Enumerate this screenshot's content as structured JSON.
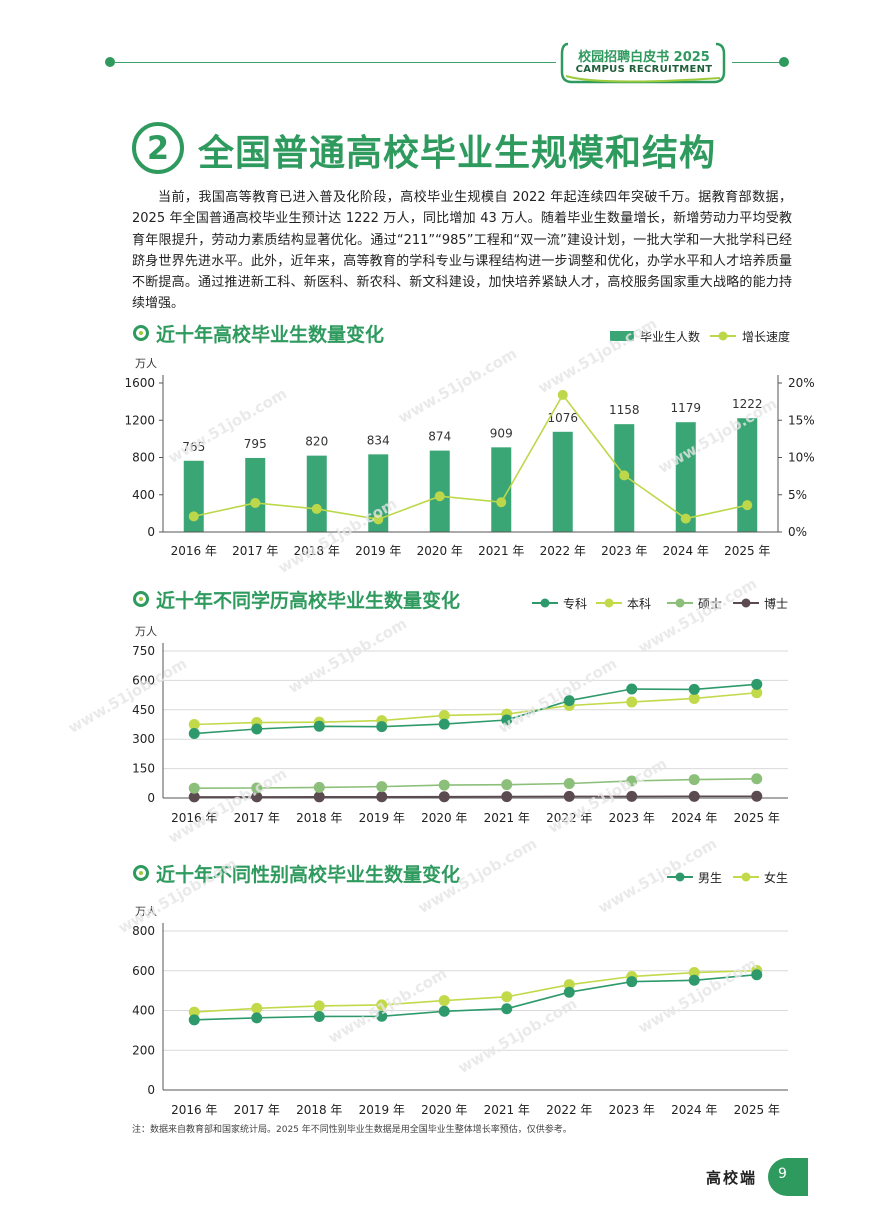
{
  "header": {
    "badge_title": "校园招聘白皮书 2025",
    "badge_subtitle": "CAMPUS RECRUITMENT"
  },
  "section": {
    "number": "2",
    "title": "全国普通高校毕业生规模和结构",
    "paragraph": "当前，我国高等教育已进入普及化阶段，高校毕业生规模自 2022 年起连续四年突破千万。据教育部数据，2025 年全国普通高校毕业生预计达 1222 万人，同比增加 43 万人。随着毕业生数量增长，新增劳动力平均受教育年限提升，劳动力素质结构显著优化。通过“211”“985”工程和“双一流”建设计划，一批大学和一大批学科已经跻身世界先进水平。此外，近年来，高等教育的学科专业与课程结构进一步调整和优化，办学水平和人才培养质量不断提高。通过推进新工科、新医科、新农科、新文科建设，加快培养紧缺人才，高校服务国家重大战略的能力持续增强。"
  },
  "charts": {
    "c1_title": "近十年高校毕业生数量变化",
    "c2_title": "近十年不同学历高校毕业生数量变化",
    "c3_title": "近十年不同性别高校毕业生数量变化"
  },
  "chart_data": [
    {
      "type": "bar",
      "title": "近十年高校毕业生数量变化",
      "unit_left": "万人",
      "categories": [
        "2016 年",
        "2017 年",
        "2018 年",
        "2019 年",
        "2020 年",
        "2021 年",
        "2022 年",
        "2023 年",
        "2024 年",
        "2025 年"
      ],
      "series": [
        {
          "name": "毕业生人数",
          "type": "bar",
          "axis": "left",
          "color": "#3aa676",
          "values": [
            765,
            795,
            820,
            834,
            874,
            909,
            1076,
            1158,
            1179,
            1222
          ]
        },
        {
          "name": "增长速度",
          "type": "line",
          "axis": "right",
          "color": "#bcd84a",
          "values": [
            2.1,
            3.9,
            3.1,
            1.7,
            4.8,
            4.0,
            18.4,
            7.6,
            1.8,
            3.6
          ]
        }
      ],
      "ylim_left": [
        0,
        1600
      ],
      "yticks_left": [
        "0",
        "400",
        "800",
        "1200",
        "1600"
      ],
      "ylim_right": [
        0,
        20
      ],
      "yticks_right": [
        "0%",
        "5%",
        "10%",
        "15%",
        "20%"
      ],
      "legend_position": "top-right"
    },
    {
      "type": "line",
      "title": "近十年不同学历高校毕业生数量变化",
      "unit_left": "万人",
      "categories": [
        "2016 年",
        "2017 年",
        "2018 年",
        "2019 年",
        "2020 年",
        "2021 年",
        "2022 年",
        "2023 年",
        "2024 年",
        "2025 年"
      ],
      "series": [
        {
          "name": "专科",
          "color": "#2e9a6b",
          "values": [
            329,
            352,
            366,
            364,
            377,
            398,
            497,
            556,
            554,
            580
          ]
        },
        {
          "name": "本科",
          "color": "#c2d94a",
          "values": [
            375,
            385,
            387,
            395,
            421,
            428,
            472,
            490,
            508,
            537
          ]
        },
        {
          "name": "硕士",
          "color": "#8cbf7a",
          "values": [
            50,
            51,
            54,
            58,
            66,
            68,
            74,
            87,
            94,
            98
          ]
        },
        {
          "name": "博士",
          "color": "#5b4a4f",
          "values": [
            5.5,
            5.8,
            6.1,
            6.3,
            6.6,
            7.2,
            8.2,
            8.2,
            8.5,
            8.8
          ]
        }
      ],
      "ylim": [
        0,
        750
      ],
      "yticks": [
        "0",
        "150",
        "300",
        "450",
        "600",
        "750"
      ],
      "legend_position": "top-right"
    },
    {
      "type": "line",
      "title": "近十年不同性别高校毕业生数量变化",
      "unit_left": "万人",
      "categories": [
        "2016 年",
        "2017 年",
        "2018 年",
        "2019 年",
        "2020 年",
        "2021 年",
        "2022 年",
        "2023 年",
        "2024 年",
        "2025 年"
      ],
      "series": [
        {
          "name": "男生",
          "color": "#2e9a6b",
          "values": [
            353,
            363,
            370,
            371,
            396,
            409,
            492,
            545,
            552,
            580
          ]
        },
        {
          "name": "女生",
          "color": "#c2d94a",
          "values": [
            392,
            411,
            423,
            428,
            450,
            469,
            530,
            571,
            591,
            601
          ]
        }
      ],
      "ylim": [
        0,
        800
      ],
      "yticks": [
        "0",
        "200",
        "400",
        "600",
        "800"
      ],
      "legend_position": "top-right"
    }
  ],
  "note": "注：数据来自教育部和国家统计局。2025 年不同性别毕业生数据是用全国毕业生整体增长率预估，仅供参考。",
  "footer": {
    "label": "高校端",
    "page": "9"
  },
  "watermark": "www.51job.com"
}
